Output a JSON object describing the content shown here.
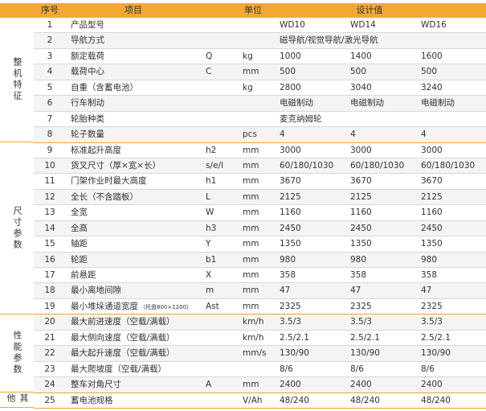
{
  "header": {
    "no": "序号",
    "item": "项目",
    "unit": "单位",
    "design": "设计值"
  },
  "groups": [
    {
      "label": "整机特征",
      "rows": [
        {
          "no": "1",
          "item": "产品型号",
          "values": [
            "WD10",
            "WD14",
            "WD16"
          ]
        },
        {
          "no": "2",
          "item": "导航方式",
          "value": "磁导航/视觉导航/激光导航"
        },
        {
          "no": "3",
          "item": "额定载荷",
          "code": "Q",
          "unit": "kg",
          "values": [
            "1000",
            "1400",
            "1600"
          ]
        },
        {
          "no": "4",
          "item": "载荷中心",
          "code": "C",
          "unit": "mm",
          "values": [
            "500",
            "500",
            "500"
          ]
        },
        {
          "no": "5",
          "item": "自重（含蓄电池）",
          "unit": "kg",
          "values": [
            "2800",
            "3040",
            "3240"
          ]
        },
        {
          "no": "6",
          "item": "行车制动",
          "values": [
            "电磁制动",
            "电磁制动",
            "电磁制动"
          ]
        },
        {
          "no": "7",
          "item": "轮胎种类",
          "value": "麦克纳姆轮"
        },
        {
          "no": "8",
          "item": "轮子数量",
          "unit": "pcs",
          "values": [
            "4",
            "4",
            "4"
          ]
        }
      ]
    },
    {
      "label": "尺寸参数",
      "rows": [
        {
          "no": "9",
          "item": "标准起升高度",
          "code": "h2",
          "unit": "mm",
          "values": [
            "3000",
            "3000",
            "3000"
          ]
        },
        {
          "no": "10",
          "item": "货叉尺寸（厚×宽×长）",
          "code": "s/e/l",
          "unit": "mm",
          "values": [
            "60/180/1030",
            "60/180/1030",
            "60/180/1030"
          ]
        },
        {
          "no": "11",
          "item": "门架作业时最大高度",
          "code": "h1",
          "unit": "mm",
          "values": [
            "3670",
            "3670",
            "3670"
          ]
        },
        {
          "no": "12",
          "item": "全长（不含踏板）",
          "code": "L",
          "unit": "mm",
          "values": [
            "2125",
            "2125",
            "2125"
          ]
        },
        {
          "no": "13",
          "item": "全宽",
          "code": "W",
          "unit": "mm",
          "values": [
            "1160",
            "1160",
            "1160"
          ]
        },
        {
          "no": "14",
          "item": "全高",
          "code": "h3",
          "unit": "mm",
          "values": [
            "2450",
            "2450",
            "2450"
          ]
        },
        {
          "no": "15",
          "item": "轴距",
          "code": "Y",
          "unit": "mm",
          "values": [
            "1350",
            "1350",
            "1350"
          ]
        },
        {
          "no": "16",
          "item": "轮距",
          "code": "b1",
          "unit": "mm",
          "values": [
            "980",
            "980",
            "980"
          ]
        },
        {
          "no": "17",
          "item": "前悬距",
          "code": "X",
          "unit": "mm",
          "values": [
            "358",
            "358",
            "358"
          ]
        },
        {
          "no": "18",
          "item": "最小离地间隙",
          "code": "m",
          "unit": "mm",
          "values": [
            "47",
            "47",
            "47"
          ]
        },
        {
          "no": "19",
          "item": "最小堆垛通道宽度",
          "note": "（托盘800×1200）",
          "code": "Ast",
          "unit": "mm",
          "values": [
            "2325",
            "2325",
            "2325"
          ]
        }
      ]
    },
    {
      "label": "性能参数",
      "rows": [
        {
          "no": "20",
          "item": "最大前进速度（空载/满载）",
          "unit": "km/h",
          "values": [
            "3.5/3",
            "3.5/3",
            "3.5/3"
          ]
        },
        {
          "no": "21",
          "item": "最大侧向速度（空载/满载）",
          "unit": "km/h",
          "values": [
            "2.5/2.1",
            "2.5/2.1",
            "2.5/2.1"
          ]
        },
        {
          "no": "22",
          "item": "最大起升速度（空载/满载）",
          "unit": "mm/s",
          "values": [
            "130/90",
            "130/90",
            "130/90"
          ]
        },
        {
          "no": "23",
          "item": "最大爬坡度（空载/满载）",
          "values": [
            "8/6",
            "8/6",
            "8/6"
          ]
        },
        {
          "no": "24",
          "item": "整车对角尺寸",
          "code": "A",
          "unit": "mm",
          "values": [
            "2400",
            "2400",
            "2400"
          ]
        }
      ]
    },
    {
      "label": "其他",
      "rows": [
        {
          "no": "25",
          "item": "蓄电池规格",
          "unit": "V/Ah",
          "values": [
            "48/240",
            "48/240",
            "48/240"
          ]
        }
      ]
    }
  ]
}
